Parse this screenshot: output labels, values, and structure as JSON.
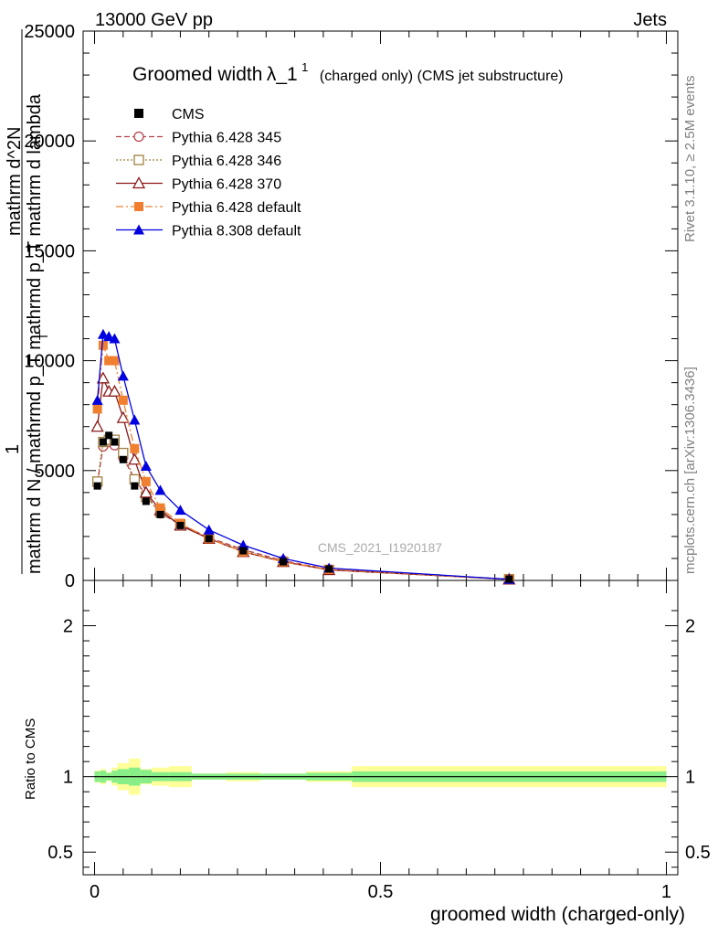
{
  "header": {
    "left": "13000 GeV pp",
    "right": "Jets"
  },
  "title": {
    "main": "Groomed width",
    "lambda": "λ_1",
    "sup": "1",
    "rest": "(charged only) (CMS jet substructure)"
  },
  "side_labels": {
    "rivet": "Rivet 3.1.10, ≥ 2.5M events",
    "mcplots": "mcplots.cern.ch [arXiv:1306.3436]"
  },
  "watermark": "CMS_2021_I1920187",
  "y_label": {
    "one": "1",
    "dN_frac": "mathrm d N",
    "denominator": "mathrm d N / mathrmd p_T mathrmd p_T mathrm d lambda",
    "line2": "mathrm d^2N",
    "sub": "T"
  },
  "ratio_ylabel": "Ratio to CMS",
  "xlabel": "groomed width (charged-only)",
  "chart_data": {
    "type": "line",
    "xlim": [
      -0.02,
      1.02
    ],
    "ylim": [
      0,
      25000
    ],
    "ratio_ylim": [
      0.35,
      2.3
    ],
    "x_ticks": [
      {
        "v": 0,
        "label": "0"
      },
      {
        "v": 0.5,
        "label": "0.5"
      },
      {
        "v": 1,
        "label": "1"
      }
    ],
    "y_ticks": [
      {
        "v": 0,
        "label": "0"
      },
      {
        "v": 5000,
        "label": "5000"
      },
      {
        "v": 10000,
        "label": "10000"
      },
      {
        "v": 15000,
        "label": "15000"
      },
      {
        "v": 20000,
        "label": "20000"
      },
      {
        "v": 25000,
        "label": "25000"
      }
    ],
    "ratio_ticks": [
      {
        "v": 0.5,
        "label": "0.5"
      },
      {
        "v": 1,
        "label": "1"
      },
      {
        "v": 2,
        "label": "2"
      }
    ],
    "x": [
      0.005,
      0.015,
      0.025,
      0.035,
      0.05,
      0.07,
      0.09,
      0.115,
      0.15,
      0.2,
      0.26,
      0.33,
      0.41,
      0.725
    ],
    "bin_edges": [
      0,
      0.01,
      0.02,
      0.03,
      0.04,
      0.06,
      0.08,
      0.1,
      0.13,
      0.17,
      0.23,
      0.29,
      0.37,
      0.45,
      1.0
    ],
    "series": [
      {
        "name": "CMS",
        "color": "#000000",
        "marker": "square-filled",
        "line": "none",
        "values": [
          4300,
          6300,
          6600,
          6300,
          5500,
          4300,
          3600,
          3000,
          2500,
          1900,
          1350,
          850,
          520,
          60
        ]
      },
      {
        "name": "Pythia 6.428 345",
        "color": "#b8434d",
        "marker": "circle-open",
        "line": "dashed",
        "values": [
          4400,
          6100,
          6300,
          6150,
          5600,
          4600,
          3900,
          3050,
          2550,
          1950,
          1400,
          900,
          500,
          60
        ]
      },
      {
        "name": "Pythia 6.428 346",
        "color": "#a08040",
        "marker": "square-open",
        "line": "dotted",
        "values": [
          4500,
          6300,
          6400,
          6400,
          5800,
          4600,
          3800,
          3100,
          2550,
          1900,
          1350,
          850,
          480,
          55
        ]
      },
      {
        "name": "Pythia 6.428 370",
        "color": "#8b1a1a",
        "marker": "triangle-open",
        "line": "solid",
        "values": [
          7000,
          9200,
          8600,
          8600,
          7400,
          5500,
          4000,
          3200,
          2500,
          1900,
          1300,
          850,
          480,
          50
        ]
      },
      {
        "name": "Pythia 6.428 default",
        "color": "#f08030",
        "marker": "square-filled",
        "line": "dashdot",
        "values": [
          7800,
          10700,
          10000,
          10000,
          8200,
          6000,
          4500,
          3300,
          2600,
          1900,
          1300,
          850,
          500,
          50
        ]
      },
      {
        "name": "Pythia 8.308 default",
        "color": "#0000e0",
        "marker": "triangle-filled",
        "line": "solid",
        "values": [
          8200,
          11200,
          11100,
          11000,
          9300,
          7300,
          5200,
          4100,
          3200,
          2300,
          1600,
          1000,
          560,
          50
        ]
      }
    ],
    "ratio_band_green": [
      0.035,
      0.04,
      0.025,
      0.04,
      0.05,
      0.06,
      0.045,
      0.03,
      0.03,
      0.02,
      0.02,
      0.02,
      0.025,
      0.035
    ],
    "ratio_band_yellow": [
      0.04,
      0.05,
      0.03,
      0.06,
      0.09,
      0.12,
      0.05,
      0.06,
      0.07,
      0.02,
      0.03,
      0.02,
      0.035,
      0.07
    ]
  }
}
